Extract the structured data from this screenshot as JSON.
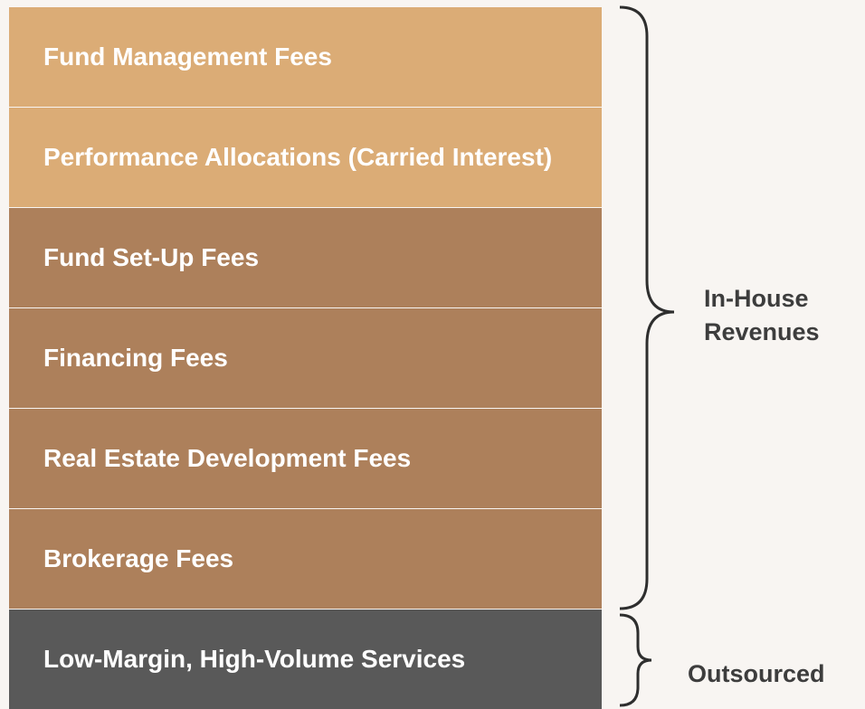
{
  "rows": [
    {
      "label": "Fund Management Fees"
    },
    {
      "label": "Performance Allocations (Carried Interest)"
    },
    {
      "label": "Fund Set-Up Fees"
    },
    {
      "label": "Financing Fees"
    },
    {
      "label": "Real Estate Development Fees"
    },
    {
      "label": "Brokerage Fees"
    },
    {
      "label": "Low-Margin, High-Volume Services"
    }
  ],
  "groups": [
    {
      "label": "In-House Revenues"
    },
    {
      "label": "Outsourced"
    }
  ]
}
